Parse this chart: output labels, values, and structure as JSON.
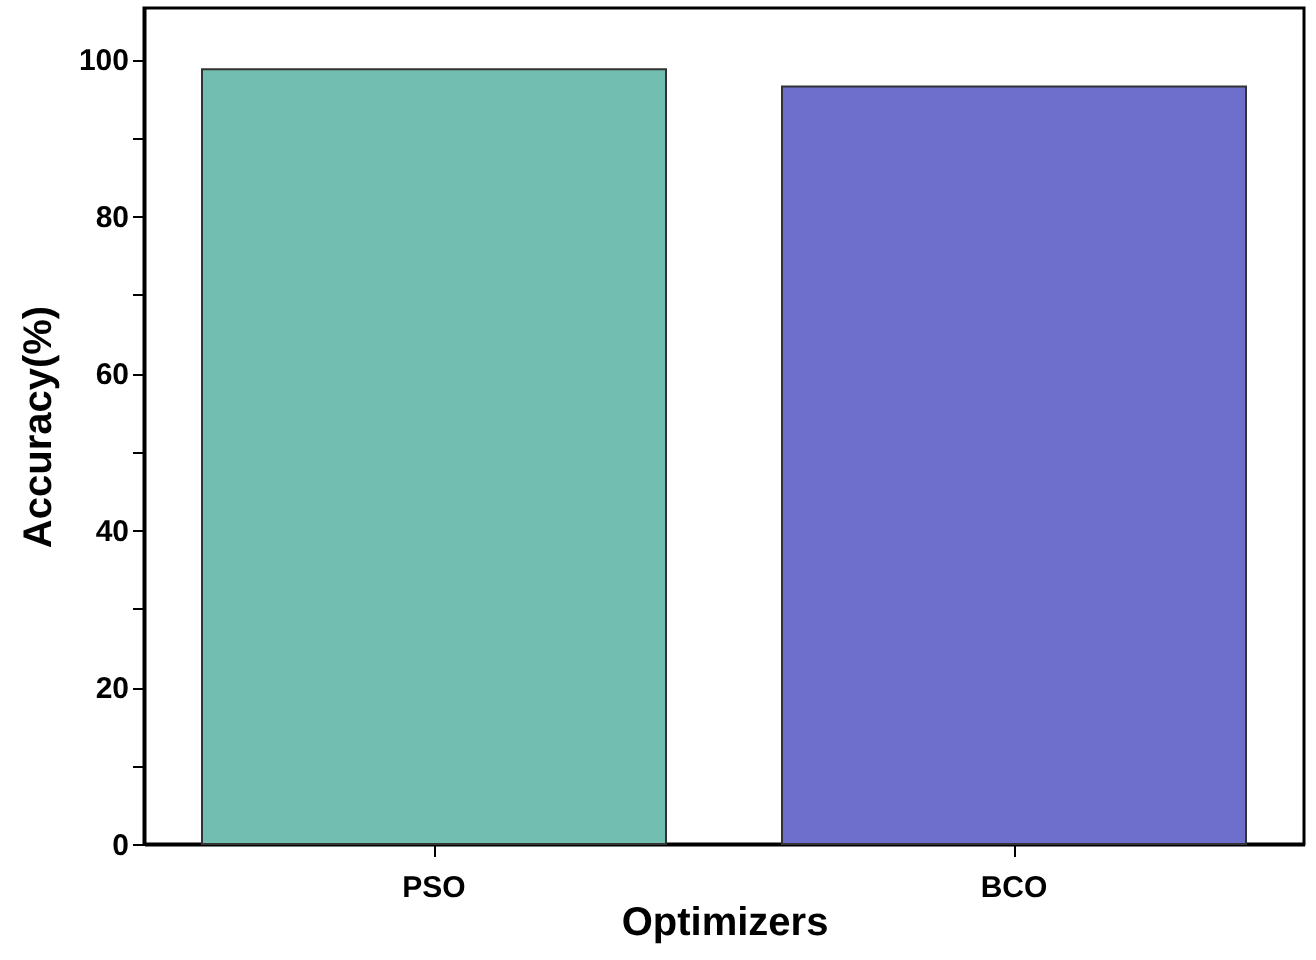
{
  "chart_data": {
    "type": "bar",
    "xlabel": "Optimizers",
    "ylabel": "Accuracy(%)",
    "categories": [
      "PSO",
      "BCO"
    ],
    "values": [
      98.7,
      96.5
    ],
    "colors": [
      "#72bfb1",
      "#6e6ecc"
    ],
    "ylim": [
      0,
      106.5
    ],
    "yticks": [
      0,
      {
        "value": 10,
        "label": null
      },
      20,
      {
        "value": 30,
        "label": null
      },
      40,
      {
        "value": 50,
        "label": null
      },
      60,
      {
        "value": 70,
        "label": null
      },
      80,
      {
        "value": 90,
        "label": null
      },
      100
    ],
    "grid": false,
    "legend": false
  }
}
